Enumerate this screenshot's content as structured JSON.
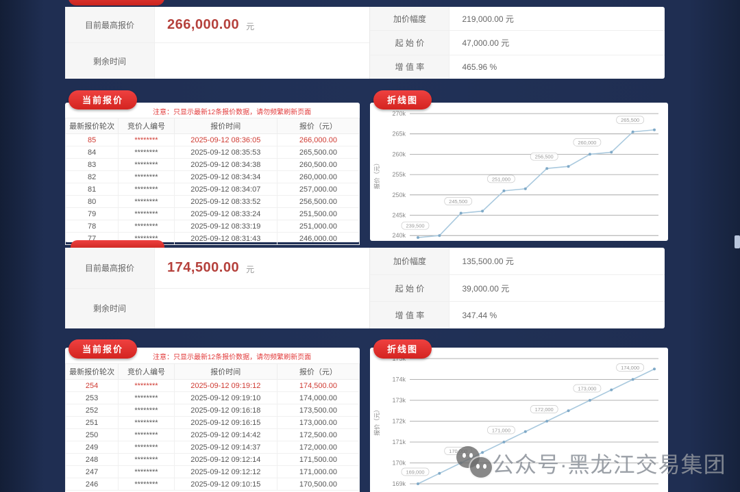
{
  "colors": {
    "background_navy": "#1f2e52",
    "panel_white": "#ffffff",
    "badge_red": "#e03131",
    "value_red": "#b5413c",
    "row_highlight_red": "#cf3a32",
    "note_red": "#e23b3b",
    "chart_line_blue": "#a9c9de",
    "grid_gray": "#999999"
  },
  "watermark": {
    "text": "公众号·黑龙江交易集团",
    "icon": "wechat-icon"
  },
  "lots": [
    {
      "summary": {
        "highest_label": "目前最高报价",
        "highest_value": "266,000.00",
        "unit": "元",
        "time_label": "剩余时间",
        "time_value": "",
        "increment_label": "加价幅度",
        "increment_value": "219,000.00 元",
        "start_label": "起 始 价",
        "start_value": "47,000.00 元",
        "rate_label": "增 值 率",
        "rate_value": "465.96 %"
      },
      "bids": {
        "badge": "当前报价",
        "note": "注意：只显示最新12条报价数据，请勿频繁刷新页面",
        "headers": [
          "最新报价轮次",
          "竞价人编号",
          "报价时间",
          "报价（元）"
        ],
        "rows": [
          [
            "85",
            "********",
            "2025-09-12 08:36:05",
            "266,000.00"
          ],
          [
            "84",
            "********",
            "2025-09-12 08:35:53",
            "265,500.00"
          ],
          [
            "83",
            "********",
            "2025-09-12 08:34:38",
            "260,500.00"
          ],
          [
            "82",
            "********",
            "2025-09-12 08:34:34",
            "260,000.00"
          ],
          [
            "81",
            "********",
            "2025-09-12 08:34:07",
            "257,000.00"
          ],
          [
            "80",
            "********",
            "2025-09-12 08:33:52",
            "256,500.00"
          ],
          [
            "79",
            "********",
            "2025-09-12 08:33:24",
            "251,500.00"
          ],
          [
            "78",
            "********",
            "2025-09-12 08:33:19",
            "251,000.00"
          ],
          [
            "77",
            "********",
            "2025-09-12 08:31:43",
            "246,000.00"
          ]
        ]
      },
      "chart_badge": "折线图"
    },
    {
      "summary": {
        "highest_label": "目前最高报价",
        "highest_value": "174,500.00",
        "unit": "元",
        "time_label": "剩余时间",
        "time_value": "",
        "increment_label": "加价幅度",
        "increment_value": "135,500.00 元",
        "start_label": "起 始 价",
        "start_value": "39,000.00 元",
        "rate_label": "增 值 率",
        "rate_value": "347.44 %"
      },
      "bids": {
        "badge": "当前报价",
        "note": "注意：只显示最新12条报价数据，请勿频繁刷新页面",
        "headers": [
          "最新报价轮次",
          "竞价人编号",
          "报价时间",
          "报价（元）"
        ],
        "rows": [
          [
            "254",
            "********",
            "2025-09-12 09:19:12",
            "174,500.00"
          ],
          [
            "253",
            "********",
            "2025-09-12 09:19:10",
            "174,000.00"
          ],
          [
            "252",
            "********",
            "2025-09-12 09:16:18",
            "173,500.00"
          ],
          [
            "251",
            "********",
            "2025-09-12 09:16:15",
            "173,000.00"
          ],
          [
            "250",
            "********",
            "2025-09-12 09:14:42",
            "172,500.00"
          ],
          [
            "249",
            "********",
            "2025-09-12 09:14:37",
            "172,000.00"
          ],
          [
            "248",
            "********",
            "2025-09-12 09:12:14",
            "171,500.00"
          ],
          [
            "247",
            "********",
            "2025-09-12 09:12:12",
            "171,000.00"
          ],
          [
            "246",
            "********",
            "2025-09-12 09:10:15",
            "170,500.00"
          ]
        ]
      },
      "chart_badge": "折线图"
    }
  ],
  "chart_data": [
    {
      "type": "line",
      "title": "折线图",
      "ylabel": "报价（元）",
      "xlabel": "",
      "values": [
        239500,
        240000,
        245500,
        246000,
        251000,
        251500,
        256500,
        257000,
        260000,
        260500,
        265500,
        266000
      ],
      "ytick_labels": [
        "270k",
        "265k",
        "260k",
        "255k",
        "250k",
        "245k",
        "240k"
      ],
      "ymin": 240000,
      "ymax": 270000,
      "ytick_step": 5000,
      "grid": true,
      "legend": false,
      "label_every": 2,
      "line_color": "#a9c9de"
    },
    {
      "type": "line",
      "title": "折线图",
      "ylabel": "报价（元）",
      "xlabel": "",
      "values": [
        169000,
        169500,
        170000,
        170500,
        171000,
        171500,
        172000,
        172500,
        173000,
        173500,
        174000,
        174500
      ],
      "ytick_labels": [
        "175k",
        "174k",
        "173k",
        "172k",
        "171k",
        "170k",
        "169k"
      ],
      "ymin": 169000,
      "ymax": 175000,
      "ytick_step": 1000,
      "grid": true,
      "legend": false,
      "label_every": 2,
      "line_color": "#a9c9de"
    }
  ]
}
